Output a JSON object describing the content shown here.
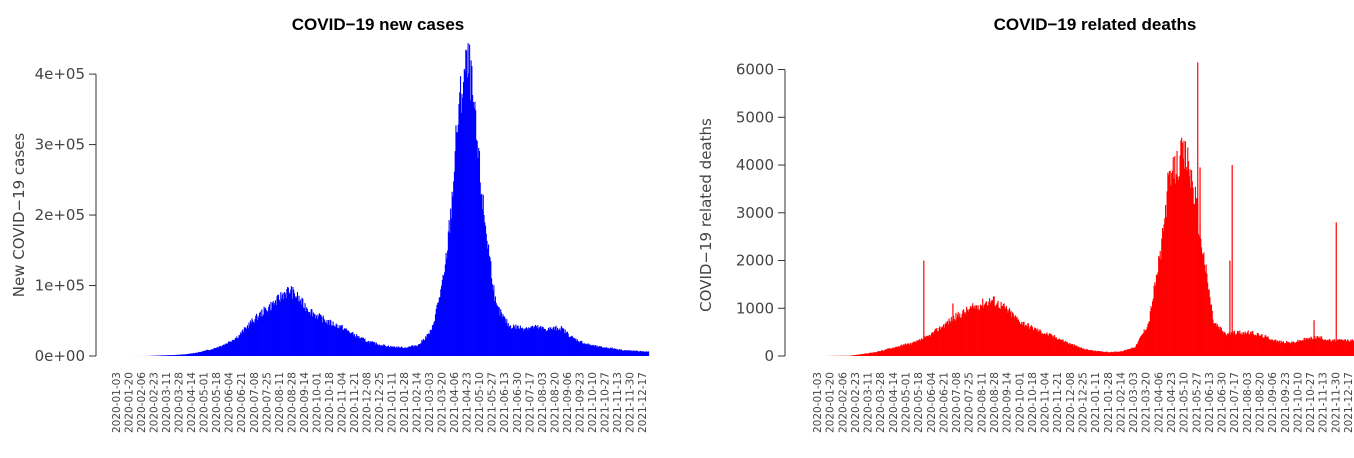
{
  "chart_data": [
    {
      "type": "bar",
      "title": "COVID−19 new cases",
      "ylabel": "New COVID−19 cases",
      "color": "#0000ff",
      "x_range": [
        "2020-01-03",
        "2021-12-31"
      ],
      "ylim": [
        0,
        420000
      ],
      "yticks": [
        0,
        100000,
        200000,
        300000,
        400000
      ],
      "ytick_labels": [
        "0e+00",
        "1e+05",
        "2e+05",
        "3e+05",
        "4e+05"
      ],
      "xtick_labels": [
        "2020-01-03",
        "2020-01-20",
        "2020-02-06",
        "2020-02-23",
        "2020-03-11",
        "2020-03-28",
        "2020-04-14",
        "2020-05-01",
        "2020-05-18",
        "2020-06-04",
        "2020-06-21",
        "2020-07-08",
        "2020-07-25",
        "2020-08-11",
        "2020-08-28",
        "2020-09-14",
        "2020-10-01",
        "2020-10-18",
        "2020-11-04",
        "2020-11-21",
        "2020-12-08",
        "2020-12-25",
        "2021-01-11",
        "2021-01-28",
        "2021-02-14",
        "2021-03-03",
        "2021-03-20",
        "2021-04-06",
        "2021-04-23",
        "2021-05-10",
        "2021-05-27",
        "2021-06-13",
        "2021-06-30",
        "2021-07-17",
        "2021-08-03",
        "2021-08-20",
        "2021-09-06",
        "2021-09-23",
        "2021-10-10",
        "2021-10-27",
        "2021-11-13",
        "2021-11-30",
        "2021-12-17"
      ],
      "series": [
        {
          "x": [
            "2020-01-03",
            "2020-02-06",
            "2020-03-11",
            "2020-03-28",
            "2020-04-14",
            "2020-05-01",
            "2020-05-18",
            "2020-06-04",
            "2020-06-21",
            "2020-07-08",
            "2020-07-25",
            "2020-08-11",
            "2020-08-28",
            "2020-09-05",
            "2020-09-14",
            "2020-09-23",
            "2020-10-01",
            "2020-10-18",
            "2020-11-04",
            "2020-11-21",
            "2020-12-08",
            "2020-12-25",
            "2021-01-11",
            "2021-01-28",
            "2021-02-14",
            "2021-03-03",
            "2021-03-20",
            "2021-04-06",
            "2021-04-15",
            "2021-04-23",
            "2021-05-01",
            "2021-05-06",
            "2021-05-10",
            "2021-05-16",
            "2021-05-27",
            "2021-06-13",
            "2021-06-30",
            "2021-07-17",
            "2021-08-03",
            "2021-08-20",
            "2021-09-06",
            "2021-09-23",
            "2021-10-10",
            "2021-10-27",
            "2021-11-13",
            "2021-11-30",
            "2021-12-17",
            "2021-12-31"
          ],
          "values": [
            0,
            0,
            50,
            800,
            1300,
            2500,
            5500,
            10000,
            17000,
            28000,
            48000,
            64000,
            78000,
            88000,
            93000,
            85000,
            74000,
            58000,
            48000,
            41000,
            30000,
            21000,
            16000,
            13000,
            12000,
            16000,
            36000,
            115000,
            210000,
            330000,
            395000,
            410000,
            400000,
            330000,
            210000,
            70000,
            43000,
            40000,
            41000,
            38000,
            40000,
            25000,
            17000,
            13000,
            11000,
            8000,
            7000,
            6000
          ]
        }
      ]
    },
    {
      "type": "bar",
      "title": "COVID−19 related deaths",
      "ylabel": "COVID−19 related deaths",
      "color": "#ff0000",
      "x_range": [
        "2020-01-03",
        "2021-12-31"
      ],
      "ylim": [
        0,
        6200
      ],
      "yticks": [
        0,
        1000,
        2000,
        3000,
        4000,
        5000,
        6000
      ],
      "ytick_labels": [
        "0",
        "1000",
        "2000",
        "3000",
        "4000",
        "5000",
        "6000"
      ],
      "xtick_labels": [
        "2020-01-03",
        "2020-01-20",
        "2020-02-06",
        "2020-02-23",
        "2020-03-11",
        "2020-03-28",
        "2020-04-14",
        "2020-05-01",
        "2020-05-18",
        "2020-06-04",
        "2020-06-21",
        "2020-07-08",
        "2020-07-25",
        "2020-08-11",
        "2020-08-28",
        "2020-09-14",
        "2020-10-01",
        "2020-10-18",
        "2020-11-04",
        "2020-11-21",
        "2020-12-08",
        "2020-12-25",
        "2021-01-11",
        "2021-01-28",
        "2021-02-14",
        "2021-03-03",
        "2021-03-20",
        "2021-04-06",
        "2021-04-23",
        "2021-05-10",
        "2021-05-27",
        "2021-06-13",
        "2021-06-30",
        "2021-07-17",
        "2021-08-03",
        "2021-08-20",
        "2021-09-06",
        "2021-09-23",
        "2021-10-10",
        "2021-10-27",
        "2021-11-13",
        "2021-11-30",
        "2021-12-17"
      ],
      "series": [
        {
          "x": [
            "2020-01-03",
            "2020-02-06",
            "2020-03-11",
            "2020-03-28",
            "2020-04-14",
            "2020-05-01",
            "2020-05-18",
            "2020-06-04",
            "2020-06-21",
            "2020-07-08",
            "2020-07-25",
            "2020-08-11",
            "2020-08-28",
            "2020-09-14",
            "2020-10-01",
            "2020-10-18",
            "2020-11-04",
            "2020-11-21",
            "2020-12-08",
            "2020-12-25",
            "2021-01-11",
            "2021-01-28",
            "2021-02-14",
            "2021-03-03",
            "2021-03-20",
            "2021-04-06",
            "2021-04-23",
            "2021-05-01",
            "2021-05-10",
            "2021-05-20",
            "2021-05-27",
            "2021-06-05",
            "2021-06-13",
            "2021-06-30",
            "2021-07-17",
            "2021-08-03",
            "2021-08-20",
            "2021-09-06",
            "2021-09-23",
            "2021-10-10",
            "2021-10-27",
            "2021-11-13",
            "2021-11-30",
            "2021-12-17",
            "2021-12-31"
          ],
          "values": [
            0,
            0,
            5,
            40,
            80,
            150,
            220,
            280,
            400,
            600,
            800,
            950,
            1080,
            1180,
            1000,
            750,
            600,
            480,
            380,
            250,
            150,
            100,
            80,
            100,
            200,
            700,
            2300,
            3500,
            3900,
            4200,
            4100,
            3400,
            2500,
            700,
            450,
            500,
            480,
            400,
            300,
            280,
            350,
            400,
            320,
            330,
            320
          ]
        }
      ],
      "spikes": [
        {
          "x": "2020-06-16",
          "value": 2000
        },
        {
          "x": "2020-07-24",
          "value": 1100
        },
        {
          "x": "2021-06-09",
          "value": 6150
        },
        {
          "x": "2021-06-12",
          "value": 3950
        },
        {
          "x": "2021-07-21",
          "value": 2000
        },
        {
          "x": "2021-07-24",
          "value": 4000
        },
        {
          "x": "2021-11-08",
          "value": 750
        },
        {
          "x": "2021-12-07",
          "value": 2800
        }
      ]
    }
  ]
}
